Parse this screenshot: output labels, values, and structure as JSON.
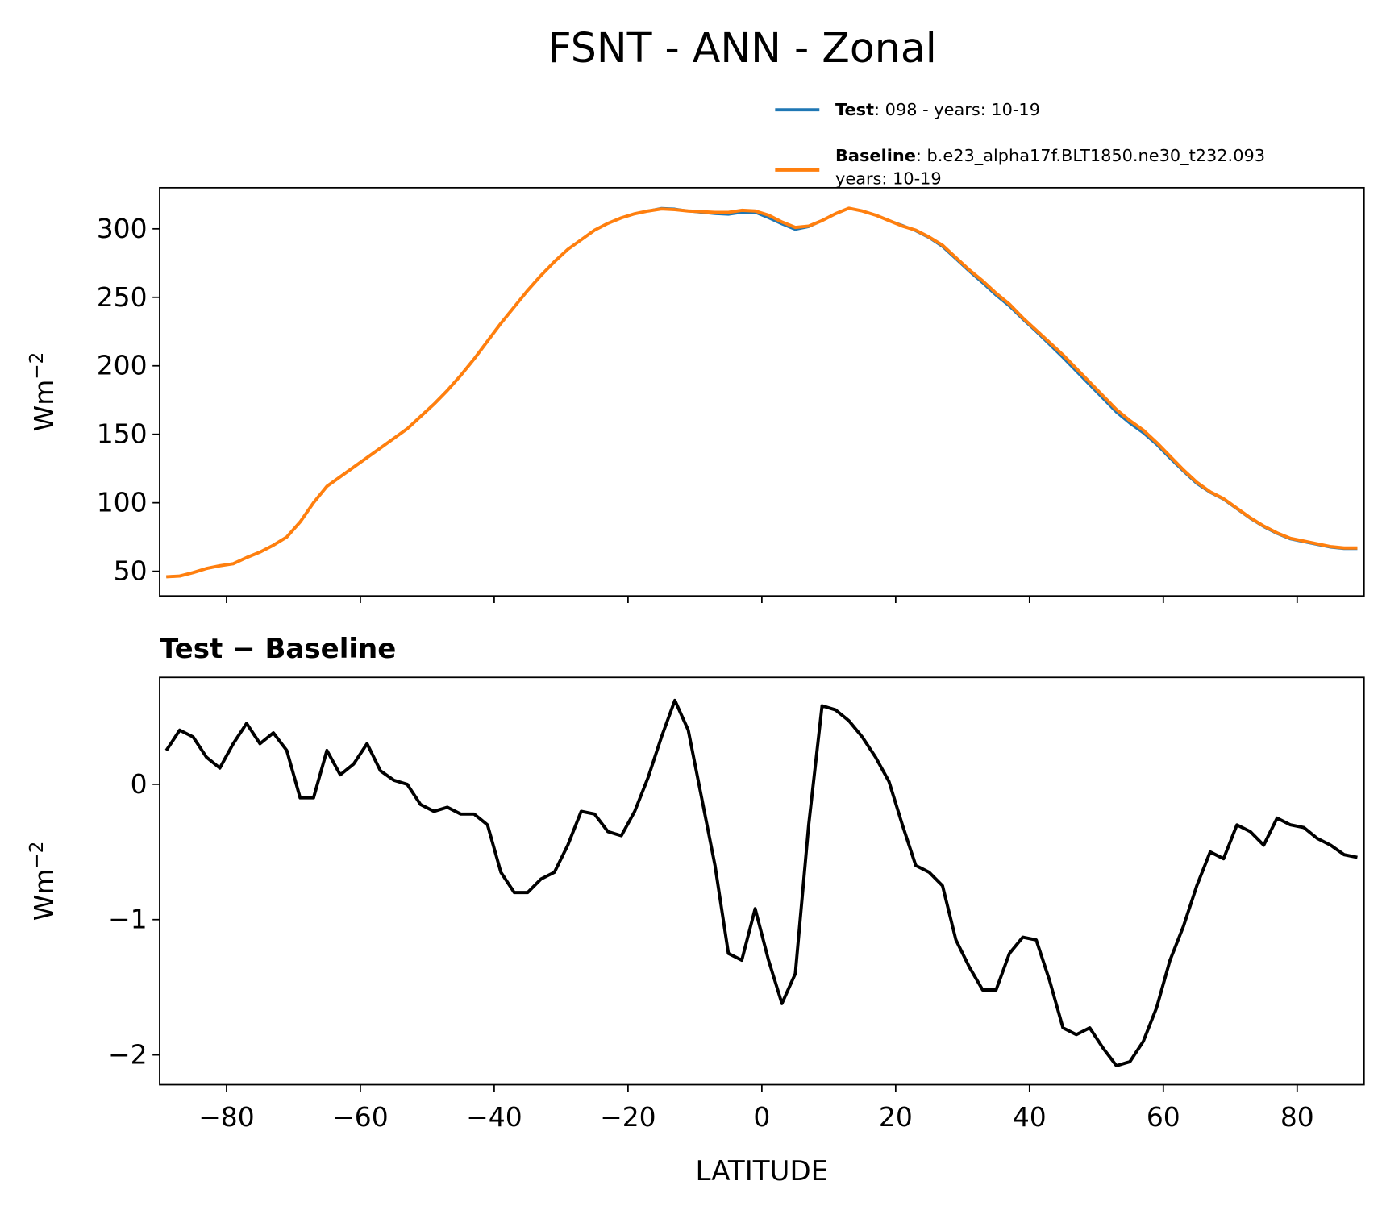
{
  "title": "FSNT - ANN - Zonal",
  "chart_data": [
    {
      "type": "line",
      "ylabel": {
        "base": "Wm",
        "sup": "−2"
      },
      "x": [
        -89,
        -87,
        -85,
        -83,
        -81,
        -79,
        -77,
        -75,
        -73,
        -71,
        -69,
        -67,
        -65,
        -63,
        -61,
        -59,
        -57,
        -55,
        -53,
        -51,
        -49,
        -47,
        -45,
        -43,
        -41,
        -39,
        -37,
        -35,
        -33,
        -31,
        -29,
        -27,
        -25,
        -23,
        -21,
        -19,
        -17,
        -15,
        -13,
        -11,
        -9,
        -7,
        -5,
        -3,
        -1,
        1,
        3,
        5,
        7,
        9,
        11,
        13,
        15,
        17,
        19,
        21,
        23,
        25,
        27,
        29,
        31,
        33,
        35,
        37,
        39,
        41,
        43,
        45,
        47,
        49,
        51,
        53,
        55,
        57,
        59,
        61,
        63,
        65,
        67,
        69,
        71,
        73,
        75,
        77,
        79,
        81,
        83,
        85,
        87,
        89
      ],
      "series": [
        {
          "name": "Test",
          "desc": [
            ": 098 - years: 10-19"
          ],
          "color": "#1f77b4",
          "values": [
            46,
            46.5,
            49,
            52,
            54,
            55.5,
            60,
            64,
            69,
            75,
            86,
            100,
            112,
            119,
            126,
            133,
            140,
            147,
            154,
            163,
            172,
            182,
            193,
            205,
            218,
            231,
            243,
            255,
            266,
            276,
            285,
            292,
            299,
            304,
            308,
            311,
            313,
            315,
            314.5,
            313,
            312,
            311,
            310.5,
            312,
            312,
            308,
            303.5,
            299.5,
            301.5,
            306,
            311,
            315,
            313,
            310,
            306,
            302.5,
            298.5,
            293.5,
            287,
            278,
            269,
            260.5,
            251.5,
            243.5,
            234,
            225,
            215.5,
            206,
            196,
            186,
            176,
            166,
            158,
            151,
            142.5,
            132.5,
            123,
            114,
            107.5,
            102.5,
            95.5,
            88.5,
            82.5,
            77.5,
            73.5,
            71.5,
            69.5,
            67.5,
            66.5,
            66.5
          ]
        },
        {
          "name": "Baseline",
          "desc": [
            ": b.e23_alpha17f.BLT1850.ne30_t232.093",
            "years: 10-19"
          ],
          "color": "#ff7f0e",
          "values": [
            46,
            46.5,
            49,
            52,
            54,
            55.5,
            60,
            64,
            69,
            75,
            86,
            100,
            112,
            119,
            126,
            133,
            140,
            147,
            154,
            163,
            172,
            182,
            193,
            205,
            218,
            231,
            243,
            255,
            266,
            276,
            285,
            292,
            299,
            304,
            308,
            311,
            313,
            314.5,
            314,
            313,
            312.5,
            312,
            312,
            313.5,
            313,
            310,
            305,
            301,
            302,
            306,
            311,
            315,
            313,
            310,
            306,
            302,
            299,
            294,
            288,
            279,
            270,
            262,
            253,
            245,
            235,
            226,
            217,
            208,
            198,
            188,
            178,
            168,
            160,
            153,
            144,
            134,
            124,
            115,
            108,
            103,
            96,
            89,
            83,
            78,
            74,
            72,
            70,
            68,
            67,
            67
          ]
        }
      ],
      "ylim": [
        32,
        330
      ],
      "yticks": [
        50,
        100,
        150,
        200,
        250,
        300
      ],
      "xlim": [
        -90,
        90
      ],
      "xticks": [
        -80,
        -60,
        -40,
        -20,
        0,
        20,
        40,
        60,
        80
      ]
    },
    {
      "type": "line",
      "title": "Test − Baseline",
      "ylabel": {
        "base": "Wm",
        "sup": "−2"
      },
      "xlabel": "LATITUDE",
      "x": [
        -89,
        -87,
        -85,
        -83,
        -81,
        -79,
        -77,
        -75,
        -73,
        -71,
        -69,
        -67,
        -65,
        -63,
        -61,
        -59,
        -57,
        -55,
        -53,
        -51,
        -49,
        -47,
        -45,
        -43,
        -41,
        -39,
        -37,
        -35,
        -33,
        -31,
        -29,
        -27,
        -25,
        -23,
        -21,
        -19,
        -17,
        -15,
        -13,
        -11,
        -9,
        -7,
        -5,
        -3,
        -1,
        1,
        3,
        5,
        7,
        9,
        11,
        13,
        15,
        17,
        19,
        21,
        23,
        25,
        27,
        29,
        31,
        33,
        35,
        37,
        39,
        41,
        43,
        45,
        47,
        49,
        51,
        53,
        55,
        57,
        59,
        61,
        63,
        65,
        67,
        69,
        71,
        73,
        75,
        77,
        79,
        81,
        83,
        85,
        87,
        89
      ],
      "series": [
        {
          "color": "#000000",
          "values": [
            0.25,
            0.4,
            0.35,
            0.2,
            0.12,
            0.3,
            0.45,
            0.3,
            0.38,
            0.25,
            -0.1,
            -0.1,
            0.25,
            0.07,
            0.15,
            0.3,
            0.1,
            0.03,
            0.0,
            -0.15,
            -0.2,
            -0.17,
            -0.22,
            -0.22,
            -0.3,
            -0.65,
            -0.8,
            -0.8,
            -0.7,
            -0.65,
            -0.45,
            -0.2,
            -0.22,
            -0.35,
            -0.38,
            -0.2,
            0.05,
            0.35,
            0.62,
            0.4,
            -0.1,
            -0.6,
            -1.25,
            -1.3,
            -0.92,
            -1.3,
            -1.62,
            -1.4,
            -0.3,
            0.58,
            0.55,
            0.47,
            0.35,
            0.2,
            0.02,
            -0.3,
            -0.6,
            -0.65,
            -0.75,
            -1.15,
            -1.35,
            -1.52,
            -1.52,
            -1.25,
            -1.13,
            -1.15,
            -1.45,
            -1.8,
            -1.85,
            -1.8,
            -1.95,
            -2.08,
            -2.05,
            -1.9,
            -1.65,
            -1.3,
            -1.05,
            -0.75,
            -0.5,
            -0.55,
            -0.3,
            -0.35,
            -0.45,
            -0.25,
            -0.3,
            -0.32,
            -0.4,
            -0.45,
            -0.52,
            -0.54
          ]
        }
      ],
      "ylim": [
        -2.22,
        0.79
      ],
      "yticks": [
        {
          "value": -2,
          "label": "−2"
        },
        {
          "value": -1,
          "label": "−1"
        },
        0
      ],
      "xlim": [
        -90,
        90
      ],
      "xticks": [
        {
          "value": -80,
          "label": "−80"
        },
        {
          "value": -60,
          "label": "−60"
        },
        {
          "value": -40,
          "label": "−40"
        },
        {
          "value": -20,
          "label": "−20"
        },
        0,
        20,
        40,
        60,
        80
      ]
    }
  ]
}
